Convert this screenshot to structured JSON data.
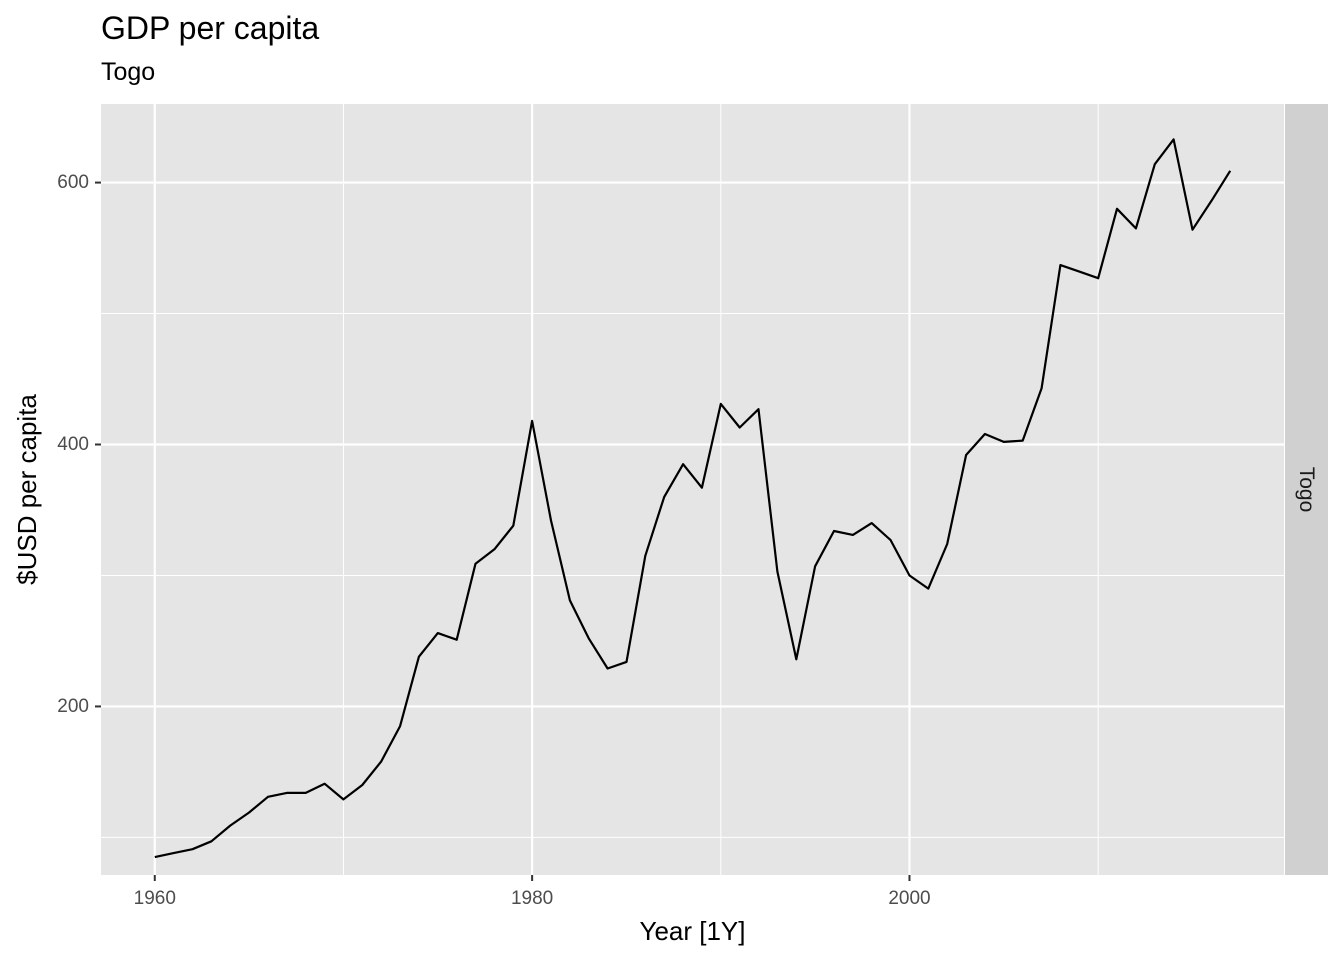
{
  "chart_data": {
    "type": "line",
    "title": "GDP per capita",
    "subtitle": "Togo",
    "xlabel": "Year [1Y]",
    "ylabel": "$USD per capita",
    "facet_label": "Togo",
    "xlim": [
      1957.15,
      2019.85
    ],
    "ylim": [
      71.3,
      660.0
    ],
    "x_ticks": [
      1960,
      1980,
      2000
    ],
    "y_ticks": [
      200,
      400,
      600
    ],
    "grid": true,
    "legend": "none",
    "colors": {
      "panel": "#e5e5e5",
      "grid": "#ffffff",
      "strip": "#d0d0d0",
      "line": "#000000"
    },
    "series": [
      {
        "x": [
          1960,
          1961,
          1962,
          1963,
          1964,
          1965,
          1966,
          1967,
          1968,
          1969,
          1970,
          1971,
          1972,
          1973,
          1974,
          1975,
          1976,
          1977,
          1978,
          1979,
          1980,
          1981,
          1982,
          1983,
          1984,
          1985,
          1986,
          1987,
          1988,
          1989,
          1990,
          1991,
          1992,
          1993,
          1994,
          1995,
          1996,
          1997,
          1998,
          1999,
          2000,
          2001,
          2002,
          2003,
          2004,
          2005,
          2006,
          2007,
          2008,
          2009,
          2010,
          2011,
          2012,
          2013,
          2014,
          2015,
          2016,
          2017
        ],
        "values": [
          85,
          88,
          91,
          97,
          109,
          119,
          131,
          134,
          134,
          141,
          129,
          140,
          158,
          185,
          238,
          256,
          251,
          309,
          320,
          338,
          418,
          342,
          281,
          252,
          229,
          234,
          315,
          360,
          385,
          367,
          431,
          413,
          427,
          303,
          236,
          307,
          334,
          331,
          340,
          327,
          300,
          290,
          324,
          392,
          408,
          402,
          403,
          443,
          537,
          532,
          527,
          580,
          565,
          614,
          633,
          564,
          586,
          609
        ]
      }
    ]
  }
}
